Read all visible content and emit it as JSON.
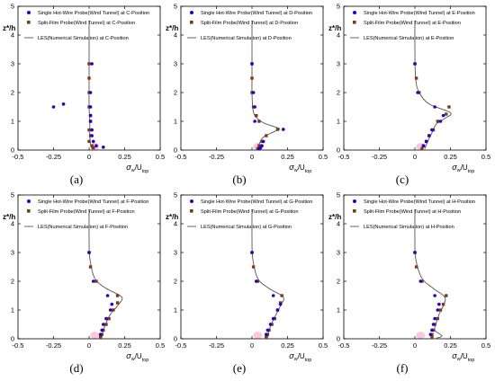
{
  "chart_data": [
    {
      "type": "scatter",
      "caption": "(a)",
      "legend": {
        "hotwire": "Single Hot-Wire Probe(Wind Tunnel) at C-Position",
        "split": "Split-Film Probe(Wind Tunnel) at C-Position",
        "les": "LES(Numerical Simulation) at C-Position"
      },
      "xlabel": "σw/Utop",
      "ylabel": "z*/h",
      "xlim": [
        -0.5,
        0.5
      ],
      "ylim": [
        0,
        5
      ],
      "xticks": [
        "-0.5",
        "-0.25",
        "0",
        "0.25",
        "0.5"
      ],
      "yticks": [
        "0",
        "1",
        "2",
        "3",
        "4",
        "5"
      ],
      "hotwire": [
        [
          0.02,
          3.0
        ],
        [
          0.01,
          2.0
        ],
        [
          0.01,
          1.5
        ],
        [
          0.01,
          1.2
        ],
        [
          0.01,
          1.0
        ],
        [
          0.02,
          0.7
        ],
        [
          0.02,
          0.5
        ],
        [
          0.03,
          0.3
        ],
        [
          0.05,
          0.15
        ],
        [
          0.1,
          0.1
        ],
        [
          -0.25,
          1.5
        ],
        [
          -0.18,
          1.6
        ]
      ],
      "split": [
        [
          0.0,
          3.0
        ],
        [
          0.0,
          2.5
        ],
        [
          0.0,
          2.0
        ],
        [
          0.0,
          1.5
        ],
        [
          0.01,
          1.2
        ],
        [
          0.01,
          1.0
        ],
        [
          0.0,
          0.7
        ],
        [
          0.01,
          0.5
        ],
        [
          0.0,
          0.3
        ],
        [
          0.02,
          0.15
        ],
        [
          0.03,
          0.08
        ]
      ],
      "les": [
        [
          0.0,
          4.5
        ],
        [
          0.0,
          3.5
        ],
        [
          0.0,
          2.5
        ],
        [
          0.0,
          1.5
        ],
        [
          0.005,
          1.0
        ],
        [
          0.005,
          0.5
        ],
        [
          0.01,
          0.2
        ],
        [
          0.02,
          0.05
        ]
      ]
    },
    {
      "type": "scatter",
      "caption": "(b)",
      "legend": {
        "hotwire": "Single Hot-Wire Probe(Wind Tunnel) at D-Position",
        "split": "Split-Film Probe(Wind Tunnel) at D-Position",
        "les": "LES(Numerical Simulation) at D-Position"
      },
      "xlabel": "σw/Utop",
      "ylabel": "z*/h",
      "xlim": [
        -0.5,
        0.5
      ],
      "ylim": [
        0,
        5
      ],
      "xticks": [
        "-0.5",
        "-0.25",
        "0",
        "0.25",
        "0.5"
      ],
      "yticks": [
        "0",
        "1",
        "2",
        "3",
        "4",
        "5"
      ],
      "hotwire": [
        [
          0.0,
          3.0
        ],
        [
          0.01,
          2.0
        ],
        [
          0.02,
          1.5
        ],
        [
          0.02,
          1.0
        ],
        [
          0.22,
          0.72
        ],
        [
          0.08,
          0.3
        ],
        [
          0.07,
          0.15
        ],
        [
          0.06,
          0.08
        ],
        [
          0.05,
          0.04
        ]
      ],
      "split": [
        [
          0.0,
          3.0
        ],
        [
          0.0,
          2.5
        ],
        [
          0.0,
          2.0
        ],
        [
          0.01,
          1.5
        ],
        [
          0.03,
          1.2
        ],
        [
          0.05,
          1.0
        ],
        [
          0.18,
          0.72
        ],
        [
          0.1,
          0.5
        ],
        [
          0.07,
          0.3
        ],
        [
          0.05,
          0.15
        ],
        [
          0.04,
          0.05
        ]
      ],
      "les": [
        [
          0.0,
          4.5
        ],
        [
          0.0,
          3.5
        ],
        [
          0.0,
          2.5
        ],
        [
          0.0,
          2.0
        ],
        [
          0.005,
          1.5
        ],
        [
          0.02,
          1.2
        ],
        [
          0.08,
          0.95
        ],
        [
          0.19,
          0.75
        ],
        [
          0.16,
          0.65
        ],
        [
          0.08,
          0.45
        ],
        [
          0.05,
          0.2
        ],
        [
          0.04,
          0.05
        ]
      ]
    },
    {
      "type": "scatter",
      "caption": "(c)",
      "legend": {
        "hotwire": "Single Hot-Wire Probe(Wind Tunnel) at E-Position",
        "split": "Split-Film Probe(Wind Tunnel) at E-Position",
        "les": "LES(Numerical Simulation) at E-Position"
      },
      "xlabel": "σw/Utop",
      "ylabel": "z*/h",
      "xlim": [
        -0.5,
        0.5
      ],
      "ylim": [
        0,
        5
      ],
      "xticks": [
        "-0.5",
        "-0.25",
        "0",
        "0.25",
        "0.5"
      ],
      "yticks": [
        "0",
        "1",
        "2",
        "3",
        "4",
        "5"
      ],
      "hotwire": [
        [
          0.0,
          3.0
        ],
        [
          0.02,
          2.0
        ],
        [
          0.14,
          1.5
        ],
        [
          0.2,
          1.2
        ],
        [
          0.18,
          1.0
        ],
        [
          0.12,
          0.7
        ],
        [
          0.1,
          0.5
        ],
        [
          0.08,
          0.3
        ],
        [
          0.06,
          0.15
        ]
      ],
      "split": [
        [
          0.0,
          3.0
        ],
        [
          0.01,
          2.5
        ],
        [
          0.03,
          2.0
        ],
        [
          0.24,
          1.5
        ],
        [
          0.22,
          1.25
        ],
        [
          0.16,
          1.0
        ],
        [
          0.13,
          0.7
        ],
        [
          0.1,
          0.5
        ],
        [
          0.08,
          0.3
        ],
        [
          0.06,
          0.15
        ],
        [
          0.05,
          0.05
        ]
      ],
      "les": [
        [
          0.0,
          4.5
        ],
        [
          0.0,
          3.5
        ],
        [
          0.005,
          2.5
        ],
        [
          0.03,
          2.0
        ],
        [
          0.1,
          1.6
        ],
        [
          0.25,
          1.3
        ],
        [
          0.21,
          1.1
        ],
        [
          0.15,
          0.9
        ],
        [
          0.12,
          0.6
        ],
        [
          0.09,
          0.3
        ],
        [
          0.07,
          0.05
        ]
      ]
    },
    {
      "type": "scatter",
      "caption": "(d)",
      "legend": {
        "hotwire": "Single Hot-Wire Probe(Wind Tunnel) at F-Position",
        "split": "Split-Film Probe(Wind Tunnel) at F-Position",
        "les": "LES(Numerical Simulation) at F-Position"
      },
      "xlabel": "σw/Utop",
      "ylabel": "z*/h",
      "xlim": [
        -0.5,
        0.5
      ],
      "ylim": [
        0,
        5
      ],
      "xticks": [
        "-0.5",
        "-0.25",
        "0",
        "0.25",
        "0.5"
      ],
      "yticks": [
        "0",
        "1",
        "2",
        "3",
        "4",
        "5"
      ],
      "hotwire": [
        [
          0.0,
          3.0
        ],
        [
          0.03,
          2.0
        ],
        [
          0.13,
          1.5
        ],
        [
          0.16,
          1.2
        ],
        [
          0.15,
          1.0
        ],
        [
          0.12,
          0.7
        ],
        [
          0.1,
          0.5
        ],
        [
          0.09,
          0.3
        ],
        [
          0.08,
          0.15
        ]
      ],
      "split": [
        [
          0.0,
          3.0
        ],
        [
          0.01,
          2.5
        ],
        [
          0.05,
          2.0
        ],
        [
          0.2,
          1.5
        ],
        [
          0.2,
          1.25
        ],
        [
          0.17,
          1.0
        ],
        [
          0.14,
          0.7
        ],
        [
          0.12,
          0.5
        ],
        [
          0.1,
          0.3
        ],
        [
          0.09,
          0.15
        ],
        [
          0.08,
          0.05
        ]
      ],
      "les": [
        [
          0.0,
          4.5
        ],
        [
          0.0,
          3.5
        ],
        [
          0.005,
          2.8
        ],
        [
          0.04,
          2.1
        ],
        [
          0.12,
          1.75
        ],
        [
          0.23,
          1.45
        ],
        [
          0.2,
          1.15
        ],
        [
          0.15,
          0.85
        ],
        [
          0.12,
          0.55
        ],
        [
          0.1,
          0.3
        ],
        [
          0.09,
          0.05
        ]
      ]
    },
    {
      "type": "scatter",
      "caption": "(e)",
      "legend": {
        "hotwire": "Single Hot-Wire Probe(Wind Tunnel) at G-Position",
        "split": "Split-Film Probe(Wind Tunnel) at G-Position",
        "les": "LES(Numerical Simulation) at G-Position"
      },
      "xlabel": "σw/Utop",
      "ylabel": "z*/h",
      "xlim": [
        -0.5,
        0.5
      ],
      "ylim": [
        0,
        5
      ],
      "xticks": [
        "-0.5",
        "-0.25",
        "0",
        "0.25",
        "0.5"
      ],
      "yticks": [
        "0",
        "1",
        "2",
        "3",
        "4",
        "5"
      ],
      "hotwire": [
        [
          0.0,
          3.0
        ],
        [
          0.03,
          2.0
        ],
        [
          0.15,
          1.5
        ],
        [
          0.2,
          1.2
        ],
        [
          0.18,
          1.0
        ],
        [
          0.15,
          0.7
        ],
        [
          0.13,
          0.5
        ],
        [
          0.11,
          0.3
        ],
        [
          0.1,
          0.15
        ]
      ],
      "split": [
        [
          0.0,
          3.0
        ],
        [
          0.01,
          2.5
        ],
        [
          0.04,
          2.0
        ],
        [
          0.21,
          1.5
        ],
        [
          0.2,
          1.25
        ],
        [
          0.18,
          1.0
        ],
        [
          0.16,
          0.7
        ],
        [
          0.14,
          0.5
        ],
        [
          0.12,
          0.3
        ],
        [
          0.11,
          0.15
        ],
        [
          0.1,
          0.05
        ]
      ],
      "les": [
        [
          0.0,
          4.5
        ],
        [
          0.0,
          3.5
        ],
        [
          0.005,
          2.8
        ],
        [
          0.04,
          2.1
        ],
        [
          0.12,
          1.75
        ],
        [
          0.22,
          1.45
        ],
        [
          0.2,
          1.15
        ],
        [
          0.17,
          0.85
        ],
        [
          0.14,
          0.55
        ],
        [
          0.12,
          0.3
        ],
        [
          0.11,
          0.05
        ]
      ]
    },
    {
      "type": "scatter",
      "caption": "(f)",
      "legend": {
        "hotwire": "Single Hot-Wire Probe(Wind Tunnel) at H-Position",
        "split": "Split-Film Probe(Wind Tunnel) at H-Position",
        "les": "LES(Numerical Simulation) at H-Position"
      },
      "xlabel": "σw/Utop",
      "ylabel": "z*/h",
      "xlim": [
        -0.5,
        0.5
      ],
      "ylim": [
        0,
        5
      ],
      "xticks": [
        "-0.5",
        "-0.25",
        "0",
        "0.25",
        "0.5"
      ],
      "yticks": [
        "0",
        "1",
        "2",
        "3",
        "4",
        "5"
      ],
      "hotwire": [
        [
          0.0,
          3.0
        ],
        [
          0.04,
          2.0
        ],
        [
          0.14,
          1.5
        ],
        [
          0.17,
          1.2
        ],
        [
          0.16,
          1.0
        ],
        [
          0.14,
          0.7
        ],
        [
          0.13,
          0.5
        ],
        [
          0.12,
          0.3
        ],
        [
          0.11,
          0.15
        ]
      ],
      "split": [
        [
          0.0,
          3.0
        ],
        [
          0.01,
          2.5
        ],
        [
          0.05,
          2.0
        ],
        [
          0.22,
          1.5
        ],
        [
          0.2,
          1.2
        ],
        [
          0.18,
          1.0
        ],
        [
          0.16,
          0.7
        ],
        [
          0.14,
          0.5
        ],
        [
          0.13,
          0.3
        ],
        [
          0.12,
          0.15
        ],
        [
          0.12,
          0.05
        ]
      ],
      "les": [
        [
          0.0,
          4.5
        ],
        [
          0.0,
          3.5
        ],
        [
          0.005,
          2.8
        ],
        [
          0.05,
          2.1
        ],
        [
          0.13,
          1.75
        ],
        [
          0.21,
          1.45
        ],
        [
          0.2,
          1.15
        ],
        [
          0.17,
          0.85
        ],
        [
          0.15,
          0.55
        ],
        [
          0.14,
          0.3
        ],
        [
          0.19,
          0.1
        ],
        [
          0.15,
          0.02
        ]
      ]
    }
  ]
}
